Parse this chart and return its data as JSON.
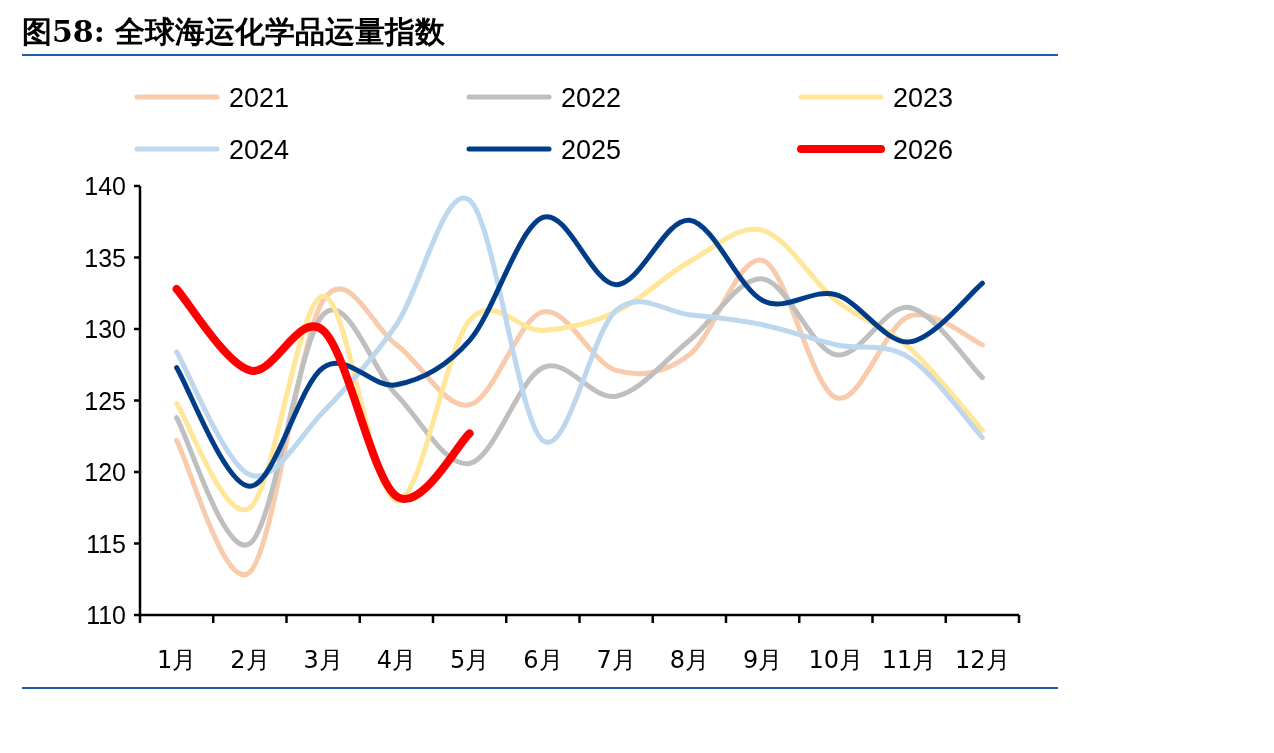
{
  "chart_data": {
    "type": "line",
    "title": "图58: 全球海运化学品运量指数",
    "categories": [
      "1月",
      "2月",
      "3月",
      "4月",
      "5月",
      "6月",
      "7月",
      "8月",
      "9月",
      "10月",
      "11月",
      "12月"
    ],
    "ylim": [
      110,
      140
    ],
    "yticks": [
      110,
      115,
      120,
      125,
      130,
      135,
      140
    ],
    "grid": false,
    "legend": "top",
    "marker": "none",
    "line_style": "solid",
    "series": [
      {
        "name": "2021",
        "color": "#f8cbad",
        "values": [
          122.2,
          113.0,
          132.0,
          128.9,
          124.7,
          131.2,
          127.1,
          128.2,
          134.8,
          125.2,
          130.9,
          128.9
        ]
      },
      {
        "name": "2022",
        "color": "#bfbfbf",
        "values": [
          123.8,
          115.0,
          131.0,
          125.4,
          120.6,
          127.3,
          125.3,
          129.2,
          133.5,
          128.2,
          131.5,
          126.6
        ]
      },
      {
        "name": "2023",
        "color": "#ffe699",
        "values": [
          124.8,
          117.5,
          132.3,
          118.0,
          130.6,
          129.9,
          131.2,
          134.7,
          136.9,
          132.0,
          128.7,
          122.9
        ]
      },
      {
        "name": "2024",
        "color": "#bdd7ee",
        "values": [
          128.4,
          119.8,
          124.2,
          130.3,
          139.0,
          122.2,
          131.3,
          131.0,
          130.3,
          128.9,
          128.0,
          122.4
        ]
      },
      {
        "name": "2025",
        "color": "#003c88",
        "values": [
          127.3,
          119.0,
          127.3,
          126.1,
          129.2,
          137.8,
          133.1,
          137.6,
          132.0,
          132.4,
          129.1,
          133.2
        ]
      },
      {
        "name": "2026",
        "color": "#ff0000",
        "values": [
          132.8,
          127.1,
          129.9,
          118.3,
          122.7,
          null,
          null,
          null,
          null,
          null,
          null,
          null
        ]
      }
    ]
  }
}
